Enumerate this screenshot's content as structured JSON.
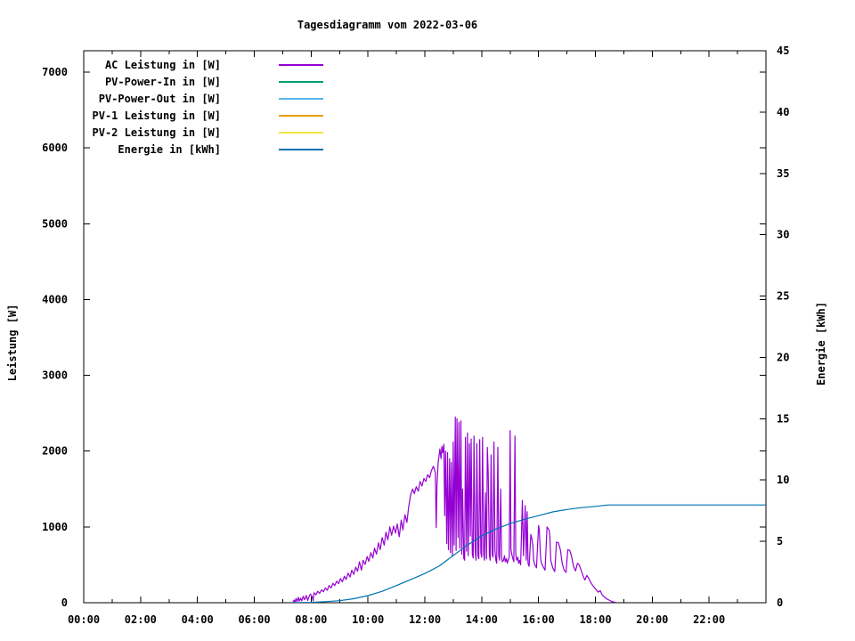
{
  "chart_data": {
    "type": "line",
    "title": "Tagesdiagramm vom 2022-03-06",
    "grid": false,
    "legend_position": "top-left-inside",
    "background_color": "#ffffff",
    "border_color": "#000000",
    "x_axis": {
      "label": "",
      "unit": "hours",
      "range": [
        0,
        24
      ],
      "major_tick_step_hours": 2,
      "minor_tick_step_hours": 1,
      "tick_labels": [
        "00:00",
        "02:00",
        "04:00",
        "06:00",
        "08:00",
        "10:00",
        "12:00",
        "14:00",
        "16:00",
        "18:00",
        "20:00",
        "22:00"
      ]
    },
    "y_axis_left": {
      "label": "Leistung [W]",
      "range": [
        0,
        7282
      ],
      "tick_step": 1000,
      "tick_labels": [
        "0",
        "1000",
        "2000",
        "3000",
        "4000",
        "5000",
        "6000",
        "7000"
      ]
    },
    "y_axis_right": {
      "label": "Energie [kWh]",
      "range": [
        0,
        45
      ],
      "tick_step": 5,
      "tick_labels": [
        "0",
        "5",
        "10",
        "15",
        "20",
        "25",
        "30",
        "35",
        "40",
        "45"
      ]
    },
    "series": [
      {
        "name": "AC Leistung in [W]",
        "color": "#9400d3",
        "axis": "left",
        "points": [
          [
            7.35,
            0
          ],
          [
            7.4,
            35
          ],
          [
            7.43,
            5
          ],
          [
            7.47,
            55
          ],
          [
            7.5,
            15
          ],
          [
            7.55,
            70
          ],
          [
            7.58,
            20
          ],
          [
            7.63,
            60
          ],
          [
            7.67,
            25
          ],
          [
            7.72,
            85
          ],
          [
            7.77,
            40
          ],
          [
            7.83,
            95
          ],
          [
            7.88,
            30
          ],
          [
            7.92,
            75
          ],
          [
            7.97,
            115
          ],
          [
            8.03,
            85
          ],
          [
            8.07,
            25
          ],
          [
            8.1,
            130
          ],
          [
            8.17,
            105
          ],
          [
            8.23,
            150
          ],
          [
            8.3,
            125
          ],
          [
            8.37,
            170
          ],
          [
            8.43,
            145
          ],
          [
            8.5,
            195
          ],
          [
            8.57,
            165
          ],
          [
            8.63,
            225
          ],
          [
            8.7,
            195
          ],
          [
            8.77,
            255
          ],
          [
            8.83,
            225
          ],
          [
            8.9,
            285
          ],
          [
            8.97,
            250
          ],
          [
            9.03,
            320
          ],
          [
            9.1,
            275
          ],
          [
            9.17,
            350
          ],
          [
            9.23,
            305
          ],
          [
            9.3,
            390
          ],
          [
            9.37,
            340
          ],
          [
            9.43,
            430
          ],
          [
            9.5,
            375
          ],
          [
            9.57,
            470
          ],
          [
            9.63,
            415
          ],
          [
            9.7,
            540
          ],
          [
            9.77,
            430
          ],
          [
            9.83,
            560
          ],
          [
            9.9,
            505
          ],
          [
            9.97,
            610
          ],
          [
            10.03,
            545
          ],
          [
            10.1,
            660
          ],
          [
            10.17,
            590
          ],
          [
            10.23,
            720
          ],
          [
            10.3,
            640
          ],
          [
            10.37,
            790
          ],
          [
            10.43,
            700
          ],
          [
            10.5,
            860
          ],
          [
            10.57,
            760
          ],
          [
            10.63,
            930
          ],
          [
            10.7,
            830
          ],
          [
            10.77,
            1000
          ],
          [
            10.83,
            890
          ],
          [
            10.9,
            1010
          ],
          [
            10.97,
            920
          ],
          [
            11.03,
            1040
          ],
          [
            11.1,
            870
          ],
          [
            11.17,
            1090
          ],
          [
            11.23,
            960
          ],
          [
            11.3,
            1160
          ],
          [
            11.37,
            1060
          ],
          [
            11.43,
            1260
          ],
          [
            11.5,
            1420
          ],
          [
            11.57,
            1500
          ],
          [
            11.63,
            1440
          ],
          [
            11.7,
            1530
          ],
          [
            11.77,
            1470
          ],
          [
            11.83,
            1600
          ],
          [
            11.9,
            1540
          ],
          [
            11.97,
            1640
          ],
          [
            12.03,
            1600
          ],
          [
            12.1,
            1690
          ],
          [
            12.17,
            1650
          ],
          [
            12.23,
            1740
          ],
          [
            12.3,
            1800
          ],
          [
            12.37,
            1720
          ],
          [
            12.4,
            990
          ],
          [
            12.43,
            1560
          ],
          [
            12.47,
            1860
          ],
          [
            12.5,
            1940
          ],
          [
            12.53,
            2030
          ],
          [
            12.57,
            1900
          ],
          [
            12.6,
            2060
          ],
          [
            12.63,
            1980
          ],
          [
            12.67,
            2090
          ],
          [
            12.7,
            1150
          ],
          [
            12.73,
            2000
          ],
          [
            12.77,
            780
          ],
          [
            12.8,
            1980
          ],
          [
            12.83,
            700
          ],
          [
            12.87,
            1900
          ],
          [
            12.9,
            660
          ],
          [
            12.93,
            1850
          ],
          [
            12.97,
            620
          ],
          [
            13.0,
            2120
          ],
          [
            13.03,
            760
          ],
          [
            13.07,
            2450
          ],
          [
            13.1,
            690
          ],
          [
            13.13,
            2430
          ],
          [
            13.17,
            860
          ],
          [
            13.2,
            2380
          ],
          [
            13.23,
            720
          ],
          [
            13.27,
            2400
          ],
          [
            13.3,
            640
          ],
          [
            13.33,
            1500
          ],
          [
            13.37,
            590
          ],
          [
            13.4,
            560
          ],
          [
            13.43,
            2180
          ],
          [
            13.47,
            680
          ],
          [
            13.5,
            2240
          ],
          [
            13.53,
            620
          ],
          [
            13.57,
            2100
          ],
          [
            13.6,
            880
          ],
          [
            13.63,
            2160
          ],
          [
            13.67,
            640
          ],
          [
            13.7,
            590
          ],
          [
            13.73,
            2200
          ],
          [
            13.77,
            700
          ],
          [
            13.8,
            560
          ],
          [
            13.83,
            2100
          ],
          [
            13.87,
            620
          ],
          [
            13.9,
            580
          ],
          [
            13.93,
            2150
          ],
          [
            13.97,
            660
          ],
          [
            14.0,
            600
          ],
          [
            14.03,
            2180
          ],
          [
            14.07,
            640
          ],
          [
            14.1,
            560
          ],
          [
            14.13,
            1450
          ],
          [
            14.17,
            580
          ],
          [
            14.2,
            2050
          ],
          [
            14.23,
            1700
          ],
          [
            14.27,
            620
          ],
          [
            14.3,
            560
          ],
          [
            14.33,
            1950
          ],
          [
            14.37,
            640
          ],
          [
            14.4,
            600
          ],
          [
            14.43,
            2120
          ],
          [
            14.47,
            680
          ],
          [
            14.5,
            560
          ],
          [
            14.53,
            520
          ],
          [
            14.57,
            2050
          ],
          [
            14.6,
            620
          ],
          [
            14.63,
            560
          ],
          [
            14.67,
            1500
          ],
          [
            14.7,
            600
          ],
          [
            14.73,
            540
          ],
          [
            14.77,
            560
          ],
          [
            14.8,
            620
          ],
          [
            14.83,
            540
          ],
          [
            14.87,
            580
          ],
          [
            14.9,
            520
          ],
          [
            14.93,
            560
          ],
          [
            14.97,
            600
          ],
          [
            15.0,
            2270
          ],
          [
            15.03,
            700
          ],
          [
            15.07,
            620
          ],
          [
            15.1,
            580
          ],
          [
            15.13,
            540
          ],
          [
            15.17,
            2200
          ],
          [
            15.2,
            640
          ],
          [
            15.23,
            560
          ],
          [
            15.27,
            600
          ],
          [
            15.3,
            520
          ],
          [
            15.33,
            560
          ],
          [
            15.37,
            500
          ],
          [
            15.43,
            1350
          ],
          [
            15.47,
            620
          ],
          [
            15.53,
            1280
          ],
          [
            15.57,
            560
          ],
          [
            15.6,
            1200
          ],
          [
            15.63,
            520
          ],
          [
            15.67,
            480
          ],
          [
            15.73,
            900
          ],
          [
            15.77,
            840
          ],
          [
            15.8,
            760
          ],
          [
            15.83,
            560
          ],
          [
            15.87,
            500
          ],
          [
            15.93,
            460
          ],
          [
            16.0,
            1020
          ],
          [
            16.03,
            960
          ],
          [
            16.07,
            600
          ],
          [
            16.1,
            520
          ],
          [
            16.17,
            470
          ],
          [
            16.23,
            430
          ],
          [
            16.3,
            1000
          ],
          [
            16.37,
            960
          ],
          [
            16.4,
            880
          ],
          [
            16.43,
            560
          ],
          [
            16.5,
            460
          ],
          [
            16.57,
            410
          ],
          [
            16.63,
            800
          ],
          [
            16.7,
            790
          ],
          [
            16.77,
            700
          ],
          [
            16.83,
            520
          ],
          [
            16.9,
            430
          ],
          [
            16.97,
            400
          ],
          [
            17.03,
            700
          ],
          [
            17.1,
            690
          ],
          [
            17.17,
            600
          ],
          [
            17.23,
            480
          ],
          [
            17.3,
            420
          ],
          [
            17.37,
            520
          ],
          [
            17.43,
            500
          ],
          [
            17.5,
            430
          ],
          [
            17.57,
            350
          ],
          [
            17.63,
            300
          ],
          [
            17.7,
            360
          ],
          [
            17.77,
            320
          ],
          [
            17.83,
            270
          ],
          [
            17.9,
            230
          ],
          [
            17.97,
            200
          ],
          [
            18.03,
            170
          ],
          [
            18.1,
            140
          ],
          [
            18.17,
            160
          ],
          [
            18.23,
            110
          ],
          [
            18.3,
            80
          ],
          [
            18.37,
            60
          ],
          [
            18.43,
            45
          ],
          [
            18.5,
            30
          ],
          [
            18.57,
            18
          ],
          [
            18.63,
            10
          ],
          [
            18.7,
            5
          ],
          [
            18.75,
            0
          ]
        ]
      },
      {
        "name": "PV-Power-In in [W]",
        "color": "#009e73",
        "axis": "left",
        "points": []
      },
      {
        "name": "PV-Power-Out in [W]",
        "color": "#56b4e9",
        "axis": "left",
        "points": []
      },
      {
        "name": "PV-1 Leistung in [W]",
        "color": "#e69f00",
        "axis": "left",
        "points": []
      },
      {
        "name": "PV-2 Leistung in [W]",
        "color": "#f0e442",
        "axis": "left",
        "points": []
      },
      {
        "name": "Energie in [kWh]",
        "color": "#0072b2",
        "axis": "right",
        "points": [
          [
            7.3,
            0
          ],
          [
            8.0,
            0.03
          ],
          [
            8.5,
            0.09
          ],
          [
            9.0,
            0.17
          ],
          [
            9.5,
            0.33
          ],
          [
            10.0,
            0.58
          ],
          [
            10.5,
            0.93
          ],
          [
            11.0,
            1.4
          ],
          [
            11.5,
            1.88
          ],
          [
            12.0,
            2.38
          ],
          [
            12.5,
            2.98
          ],
          [
            13.0,
            3.85
          ],
          [
            13.5,
            4.7
          ],
          [
            14.0,
            5.45
          ],
          [
            14.5,
            6.0
          ],
          [
            15.0,
            6.45
          ],
          [
            15.5,
            6.8
          ],
          [
            16.0,
            7.1
          ],
          [
            16.5,
            7.4
          ],
          [
            17.0,
            7.6
          ],
          [
            17.5,
            7.75
          ],
          [
            18.0,
            7.85
          ],
          [
            18.3,
            7.93
          ],
          [
            18.45,
            7.97
          ],
          [
            24.0,
            7.97
          ]
        ]
      }
    ]
  }
}
